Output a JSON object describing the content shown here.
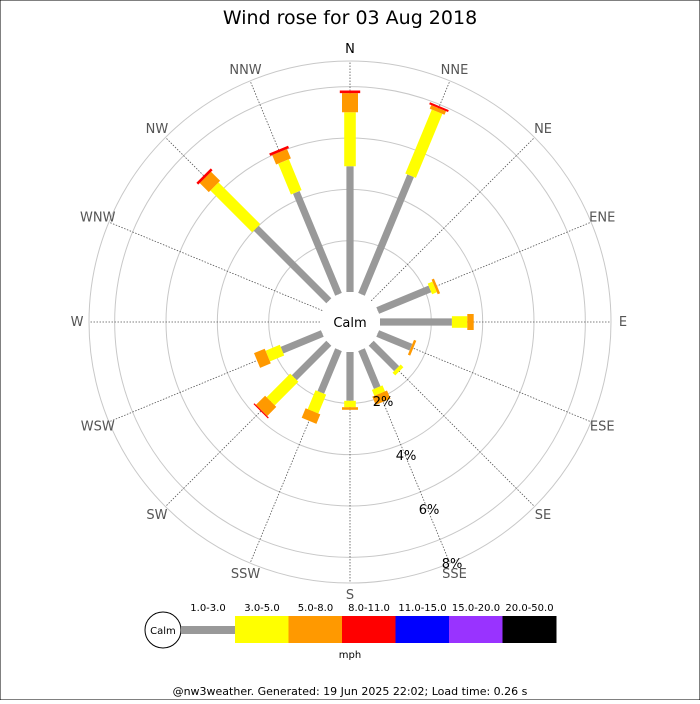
{
  "chart_data": {
    "type": "wind-rose",
    "title": "Wind rose for 03 Aug 2018",
    "calm_label": "Calm",
    "directions": [
      "N",
      "NNE",
      "NE",
      "ENE",
      "E",
      "ESE",
      "SE",
      "SSE",
      "S",
      "SSW",
      "SW",
      "WSW",
      "W",
      "WNW",
      "NW",
      "NNW"
    ],
    "ring_labels": [
      "2%",
      "4%",
      "6%",
      "8%"
    ],
    "rmax_percent": 9,
    "speed_bins": [
      {
        "name": "1.0-3.0",
        "color": "#999999"
      },
      {
        "name": "3.0-5.0",
        "color": "#ffff00"
      },
      {
        "name": "5.0-8.0",
        "color": "#ff9900"
      },
      {
        "name": "8.0-11.0",
        "color": "#ff0000"
      },
      {
        "name": "11.0-15.0",
        "color": "#0000ff"
      },
      {
        "name": "15.0-20.0",
        "color": "#9933ff"
      },
      {
        "name": "20.0-50.0",
        "color": "#000000"
      }
    ],
    "series_by_direction": [
      [
        4.9,
        2.1,
        0.75,
        0.1,
        0,
        0,
        0
      ],
      [
        5.0,
        2.7,
        0.15,
        0.08,
        0,
        0,
        0
      ],
      [
        0,
        0,
        0,
        0,
        0,
        0,
        0
      ],
      [
        2.2,
        0.2,
        0.1,
        0,
        0,
        0,
        0
      ],
      [
        2.8,
        0.6,
        0.25,
        0,
        0,
        0,
        0
      ],
      [
        1.4,
        0,
        0.1,
        0,
        0,
        0,
        0
      ],
      [
        1.4,
        0.15,
        0,
        0,
        0,
        0,
        0
      ],
      [
        1.6,
        0.25,
        0.35,
        0,
        0,
        0,
        0
      ],
      [
        1.9,
        0.25,
        0.1,
        0,
        0,
        0,
        0
      ],
      [
        1.8,
        0.8,
        0.4,
        0,
        0,
        0,
        0
      ],
      [
        1.9,
        1.3,
        0.5,
        0.05,
        0,
        0,
        0
      ],
      [
        1.7,
        0.6,
        0.45,
        0,
        0,
        0,
        0
      ],
      [
        0,
        0,
        0,
        0,
        0,
        0,
        0
      ],
      [
        0,
        0,
        0,
        0,
        0,
        0,
        0
      ],
      [
        4.0,
        2.3,
        0.5,
        0.1,
        0,
        0,
        0
      ],
      [
        4.3,
        1.3,
        0.4,
        0.1,
        0,
        0,
        0
      ]
    ],
    "unit": "mph"
  },
  "footer": "@nw3weather. Generated: 19 Jun 2025 22:02; Load time: 0.26 s"
}
